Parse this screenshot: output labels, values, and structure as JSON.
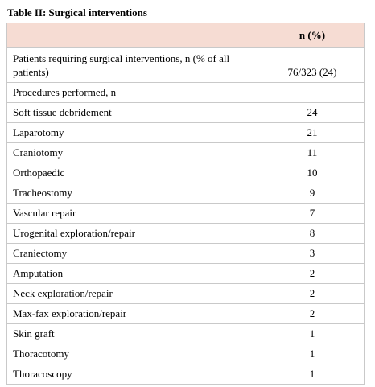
{
  "title": "Table II: Surgical interventions",
  "table": {
    "column_header": "n (%)",
    "rows": [
      [
        "Patients requiring surgical interventions, n (% of all patients)",
        "76/323 (24)"
      ],
      [
        "Procedures performed, n"
      ],
      [
        "Soft tissue debridement",
        24
      ],
      [
        "Laparotomy",
        21
      ],
      [
        "Craniotomy",
        11
      ],
      [
        "Orthopaedic",
        10
      ],
      [
        "Tracheostomy",
        9
      ],
      [
        "Vascular repair",
        7
      ],
      [
        "Urogenital exploration/repair",
        8
      ],
      [
        "Craniectomy",
        3
      ],
      [
        "Amputation",
        2
      ],
      [
        "Neck exploration/repair",
        2
      ],
      [
        "Max-fax exploration/repair",
        2
      ],
      [
        "Skin graft",
        1
      ],
      [
        "Thoracotomy",
        1
      ],
      [
        "Thoracoscopy",
        1
      ]
    ]
  }
}
